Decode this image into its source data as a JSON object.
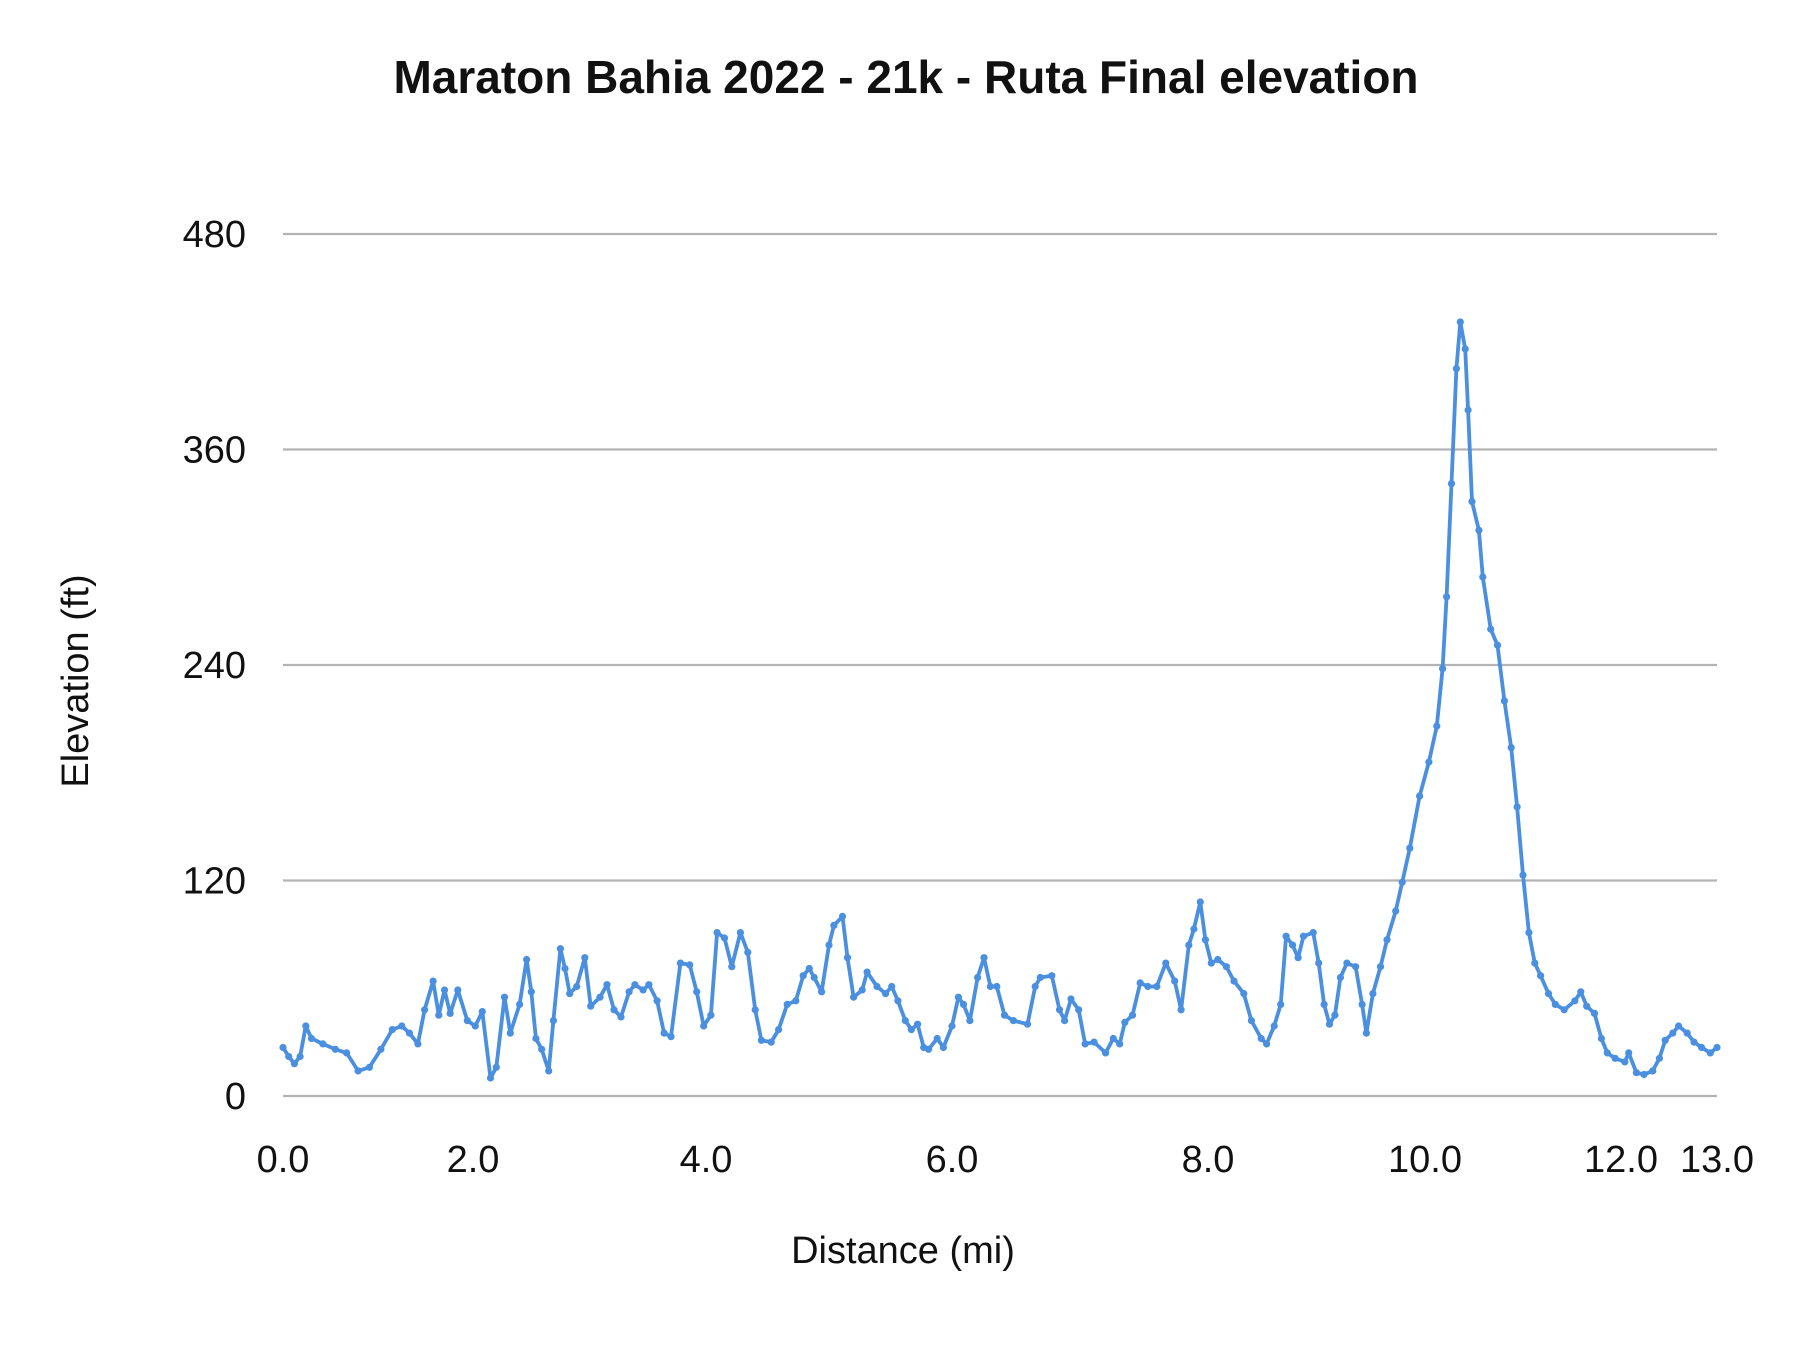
{
  "chart_data": {
    "type": "line",
    "title": "Maraton Bahia 2022 - 21k - Ruta Final elevation",
    "xlabel": "Distance (mi)",
    "ylabel": "Elevation (ft)",
    "ylim": [
      0,
      480
    ],
    "yticks": [
      "0",
      "120",
      "240",
      "360",
      "480"
    ],
    "xticks": [
      "0.0",
      "2.0",
      "4.0",
      "6.0",
      "8.0",
      "10.0",
      "12.0",
      "13.0"
    ],
    "grid": "horizontal",
    "legend": "none",
    "line_color": "#4A8FE0",
    "grid_color": "#B3B3B3",
    "markers": true,
    "points": [
      [
        0,
        27
      ],
      [
        0.06,
        22
      ],
      [
        0.12,
        18
      ],
      [
        0.18,
        22
      ],
      [
        0.24,
        39
      ],
      [
        0.3,
        32
      ],
      [
        0.42,
        29
      ],
      [
        0.55,
        26
      ],
      [
        0.67,
        24
      ],
      [
        0.79,
        14
      ],
      [
        0.91,
        16
      ],
      [
        1.03,
        26
      ],
      [
        1.15,
        37
      ],
      [
        1.25,
        39
      ],
      [
        1.33,
        35
      ],
      [
        1.42,
        29
      ],
      [
        1.49,
        48
      ],
      [
        1.58,
        64
      ],
      [
        1.64,
        45
      ],
      [
        1.7,
        59
      ],
      [
        1.76,
        46
      ],
      [
        1.84,
        59
      ],
      [
        1.94,
        42
      ],
      [
        2.02,
        39
      ],
      [
        2.08,
        47
      ],
      [
        2.15,
        10
      ],
      [
        2.2,
        16
      ],
      [
        2.27,
        55
      ],
      [
        2.32,
        35
      ],
      [
        2.4,
        51
      ],
      [
        2.46,
        76
      ],
      [
        2.5,
        58
      ],
      [
        2.54,
        32
      ],
      [
        2.59,
        26
      ],
      [
        2.65,
        14
      ],
      [
        2.69,
        42
      ],
      [
        2.75,
        82
      ],
      [
        2.79,
        71
      ],
      [
        2.83,
        57
      ],
      [
        2.89,
        61
      ],
      [
        2.96,
        77
      ],
      [
        3.01,
        50
      ],
      [
        3.09,
        55
      ],
      [
        3.15,
        62
      ],
      [
        3.21,
        48
      ],
      [
        3.27,
        44
      ],
      [
        3.34,
        58
      ],
      [
        3.39,
        62
      ],
      [
        3.46,
        59
      ],
      [
        3.51,
        62
      ],
      [
        3.58,
        53
      ],
      [
        3.64,
        35
      ],
      [
        3.7,
        33
      ],
      [
        3.78,
        74
      ],
      [
        3.86,
        73
      ],
      [
        3.92,
        58
      ],
      [
        3.98,
        39
      ],
      [
        4.04,
        45
      ],
      [
        4.09,
        91
      ],
      [
        4.15,
        88
      ],
      [
        4.21,
        72
      ],
      [
        4.28,
        91
      ],
      [
        4.34,
        80
      ],
      [
        4.4,
        48
      ],
      [
        4.45,
        31
      ],
      [
        4.53,
        30
      ],
      [
        4.59,
        37
      ],
      [
        4.66,
        51
      ],
      [
        4.73,
        53
      ],
      [
        4.79,
        67
      ],
      [
        4.84,
        71
      ],
      [
        4.88,
        66
      ],
      [
        4.94,
        58
      ],
      [
        5.0,
        84
      ],
      [
        5.04,
        95
      ],
      [
        5.11,
        100
      ],
      [
        5.15,
        77
      ],
      [
        5.2,
        55
      ],
      [
        5.27,
        59
      ],
      [
        5.31,
        69
      ],
      [
        5.39,
        61
      ],
      [
        5.46,
        57
      ],
      [
        5.51,
        61
      ],
      [
        5.56,
        53
      ],
      [
        5.62,
        42
      ],
      [
        5.67,
        37
      ],
      [
        5.72,
        40
      ],
      [
        5.77,
        27
      ],
      [
        5.81,
        26
      ],
      [
        5.88,
        32
      ],
      [
        5.93,
        27
      ],
      [
        6.0,
        39
      ],
      [
        6.05,
        55
      ],
      [
        6.09,
        51
      ],
      [
        6.14,
        42
      ],
      [
        6.2,
        66
      ],
      [
        6.25,
        77
      ],
      [
        6.3,
        61
      ],
      [
        6.35,
        61
      ],
      [
        6.41,
        45
      ],
      [
        6.48,
        42
      ],
      [
        6.59,
        40
      ],
      [
        6.65,
        61
      ],
      [
        6.69,
        66
      ],
      [
        6.78,
        67
      ],
      [
        6.84,
        48
      ],
      [
        6.88,
        42
      ],
      [
        6.93,
        54
      ],
      [
        6.99,
        48
      ],
      [
        7.04,
        29
      ],
      [
        7.11,
        30
      ],
      [
        7.2,
        24
      ],
      [
        7.26,
        32
      ],
      [
        7.31,
        29
      ],
      [
        7.35,
        41
      ],
      [
        7.41,
        45
      ],
      [
        7.47,
        63
      ],
      [
        7.53,
        61
      ],
      [
        7.6,
        61
      ],
      [
        7.67,
        74
      ],
      [
        7.74,
        64
      ],
      [
        7.79,
        48
      ],
      [
        7.85,
        84
      ],
      [
        7.89,
        93
      ],
      [
        7.94,
        108
      ],
      [
        7.98,
        87
      ],
      [
        8.03,
        74
      ],
      [
        8.09,
        76
      ],
      [
        8.17,
        72
      ],
      [
        8.24,
        64
      ],
      [
        8.33,
        57
      ],
      [
        8.4,
        42
      ],
      [
        8.49,
        32
      ],
      [
        8.54,
        29
      ],
      [
        8.61,
        39
      ],
      [
        8.67,
        51
      ],
      [
        8.72,
        89
      ],
      [
        8.78,
        84
      ],
      [
        8.83,
        77
      ],
      [
        8.88,
        89
      ],
      [
        8.97,
        91
      ],
      [
        9.02,
        74
      ],
      [
        9.07,
        51
      ],
      [
        9.12,
        40
      ],
      [
        9.17,
        45
      ],
      [
        9.22,
        66
      ],
      [
        9.28,
        74
      ],
      [
        9.36,
        72
      ],
      [
        9.42,
        51
      ],
      [
        9.46,
        35
      ],
      [
        9.52,
        57
      ],
      [
        9.59,
        72
      ],
      [
        9.65,
        87
      ],
      [
        9.73,
        103
      ],
      [
        9.79,
        119
      ],
      [
        9.86,
        138
      ],
      [
        9.95,
        167
      ],
      [
        10.04,
        186
      ],
      [
        10.12,
        206
      ],
      [
        10.18,
        238
      ],
      [
        10.22,
        278
      ],
      [
        10.27,
        341
      ],
      [
        10.32,
        405
      ],
      [
        10.36,
        431
      ],
      [
        10.41,
        416
      ],
      [
        10.44,
        382
      ],
      [
        10.48,
        331
      ],
      [
        10.55,
        315
      ],
      [
        10.59,
        289
      ],
      [
        10.67,
        260
      ],
      [
        10.74,
        251
      ],
      [
        10.81,
        220
      ],
      [
        10.88,
        194
      ],
      [
        10.94,
        161
      ],
      [
        11.0,
        123
      ],
      [
        11.06,
        91
      ],
      [
        11.12,
        74
      ],
      [
        11.18,
        67
      ],
      [
        11.26,
        57
      ],
      [
        11.33,
        51
      ],
      [
        11.42,
        48
      ],
      [
        11.53,
        53
      ],
      [
        11.59,
        58
      ],
      [
        11.65,
        50
      ],
      [
        11.73,
        46
      ],
      [
        11.8,
        32
      ],
      [
        11.86,
        24
      ],
      [
        11.94,
        21
      ],
      [
        12.04,
        19
      ],
      [
        12.08,
        24
      ],
      [
        12.16,
        13
      ],
      [
        12.24,
        12
      ],
      [
        12.33,
        14
      ],
      [
        12.4,
        21
      ],
      [
        12.46,
        31
      ],
      [
        12.54,
        35
      ],
      [
        12.6,
        39
      ],
      [
        12.69,
        35
      ],
      [
        12.76,
        30
      ],
      [
        12.84,
        27
      ],
      [
        12.93,
        24
      ],
      [
        13.0,
        27
      ]
    ]
  }
}
